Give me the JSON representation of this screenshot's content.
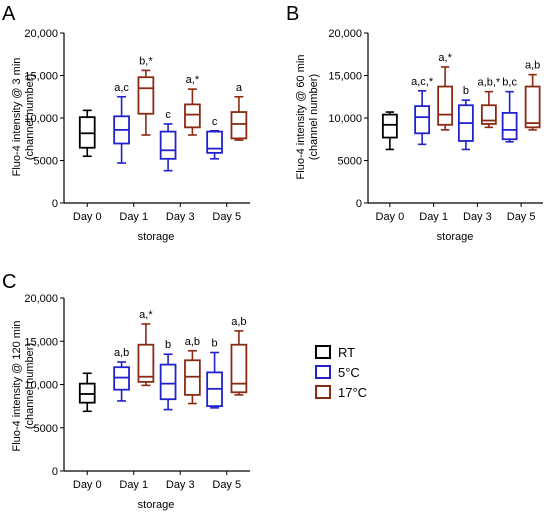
{
  "legend": {
    "items": [
      {
        "label": "RT",
        "color": "#000000"
      },
      {
        "label": "5°C",
        "color": "#2222cc"
      },
      {
        "label": "17°C",
        "color": "#8b2a12"
      }
    ]
  },
  "chart_data": [
    {
      "panel_label": "A",
      "type": "box",
      "ylabel_lines": [
        "Fluo-4 intensity @ 3 min",
        "(channel number)"
      ],
      "xlabel": "storage",
      "ylim": [
        0,
        20000
      ],
      "yticks": [
        0,
        5000,
        10000,
        15000,
        20000
      ],
      "ytick_labels": [
        "0",
        "5000",
        "10,000",
        "15,000",
        "20,000"
      ],
      "categories": [
        "Day 0",
        "Day 1",
        "Day 3",
        "Day 5"
      ],
      "boxes": [
        {
          "category": "Day 0",
          "series": "RT",
          "min": 5500,
          "q1": 6500,
          "median": 8200,
          "q3": 10100,
          "max": 10900,
          "annotation": ""
        },
        {
          "category": "Day 1",
          "series": "5°C",
          "min": 4700,
          "q1": 7000,
          "median": 8600,
          "q3": 10200,
          "max": 12500,
          "annotation": "a,c"
        },
        {
          "category": "Day 1",
          "series": "17°C",
          "min": 8000,
          "q1": 10500,
          "median": 13500,
          "q3": 14800,
          "max": 15600,
          "annotation": "b,*"
        },
        {
          "category": "Day 3",
          "series": "5°C",
          "min": 3800,
          "q1": 5200,
          "median": 6200,
          "q3": 8400,
          "max": 9300,
          "annotation": "c"
        },
        {
          "category": "Day 3",
          "series": "17°C",
          "min": 8000,
          "q1": 8900,
          "median": 10400,
          "q3": 11600,
          "max": 13400,
          "annotation": "a,*"
        },
        {
          "category": "Day 5",
          "series": "5°C",
          "min": 5200,
          "q1": 5900,
          "median": 6400,
          "q3": 8400,
          "max": 8500,
          "annotation": "c"
        },
        {
          "category": "Day 5",
          "series": "17°C",
          "min": 7400,
          "q1": 7600,
          "median": 9300,
          "q3": 10700,
          "max": 12500,
          "annotation": "a"
        }
      ]
    },
    {
      "panel_label": "B",
      "type": "box",
      "ylabel_lines": [
        "Fluo-4 intensity @ 60 min",
        "(channel number)"
      ],
      "xlabel": "storage",
      "ylim": [
        0,
        20000
      ],
      "yticks": [
        0,
        5000,
        10000,
        15000,
        20000
      ],
      "ytick_labels": [
        "0",
        "5000",
        "10,000",
        "15,000",
        "20,000"
      ],
      "categories": [
        "Day 0",
        "Day 1",
        "Day 3",
        "Day 5"
      ],
      "boxes": [
        {
          "category": "Day 0",
          "series": "RT",
          "min": 6300,
          "q1": 7700,
          "median": 9200,
          "q3": 10400,
          "max": 10700,
          "annotation": ""
        },
        {
          "category": "Day 1",
          "series": "5°C",
          "min": 6900,
          "q1": 8200,
          "median": 10100,
          "q3": 11400,
          "max": 13200,
          "annotation": "a,c,*"
        },
        {
          "category": "Day 1",
          "series": "17°C",
          "min": 8600,
          "q1": 9200,
          "median": 10400,
          "q3": 13700,
          "max": 16000,
          "annotation": "a,*"
        },
        {
          "category": "Day 3",
          "series": "5°C",
          "min": 6300,
          "q1": 7300,
          "median": 9400,
          "q3": 11500,
          "max": 12100,
          "annotation": "b"
        },
        {
          "category": "Day 3",
          "series": "17°C",
          "min": 8900,
          "q1": 9300,
          "median": 9700,
          "q3": 11500,
          "max": 13100,
          "annotation": "a,b,*"
        },
        {
          "category": "Day 5",
          "series": "5°C",
          "min": 7200,
          "q1": 7500,
          "median": 8600,
          "q3": 10600,
          "max": 13100,
          "annotation": "b,c"
        },
        {
          "category": "Day 5",
          "series": "17°C",
          "min": 8600,
          "q1": 8900,
          "median": 9400,
          "q3": 13700,
          "max": 15100,
          "annotation": "a,b"
        }
      ]
    },
    {
      "panel_label": "C",
      "type": "box",
      "ylabel_lines": [
        "Fluo-4 intensity @ 120 min",
        "(channel number)"
      ],
      "xlabel": "storage",
      "ylim": [
        0,
        20000
      ],
      "yticks": [
        0,
        5000,
        10000,
        15000,
        20000
      ],
      "ytick_labels": [
        "0",
        "5000",
        "10,000",
        "15,000",
        "20,000"
      ],
      "categories": [
        "Day 0",
        "Day 1",
        "Day 3",
        "Day 5"
      ],
      "boxes": [
        {
          "category": "Day 0",
          "series": "RT",
          "min": 6900,
          "q1": 7900,
          "median": 8900,
          "q3": 10100,
          "max": 11300,
          "annotation": ""
        },
        {
          "category": "Day 1",
          "series": "5°C",
          "min": 8100,
          "q1": 9400,
          "median": 10800,
          "q3": 12000,
          "max": 12600,
          "annotation": "a,b"
        },
        {
          "category": "Day 1",
          "series": "17°C",
          "min": 9900,
          "q1": 10300,
          "median": 10900,
          "q3": 14600,
          "max": 17000,
          "annotation": "a,*"
        },
        {
          "category": "Day 3",
          "series": "5°C",
          "min": 7100,
          "q1": 8300,
          "median": 10100,
          "q3": 12300,
          "max": 13500,
          "annotation": "b"
        },
        {
          "category": "Day 3",
          "series": "17°C",
          "min": 7800,
          "q1": 8800,
          "median": 10900,
          "q3": 12800,
          "max": 13900,
          "annotation": "a,b"
        },
        {
          "category": "Day 5",
          "series": "5°C",
          "min": 7300,
          "q1": 7500,
          "median": 9500,
          "q3": 11400,
          "max": 13700,
          "annotation": "b"
        },
        {
          "category": "Day 5",
          "series": "17°C",
          "min": 8800,
          "q1": 9100,
          "median": 10100,
          "q3": 14600,
          "max": 16200,
          "annotation": "a,b"
        }
      ]
    }
  ]
}
